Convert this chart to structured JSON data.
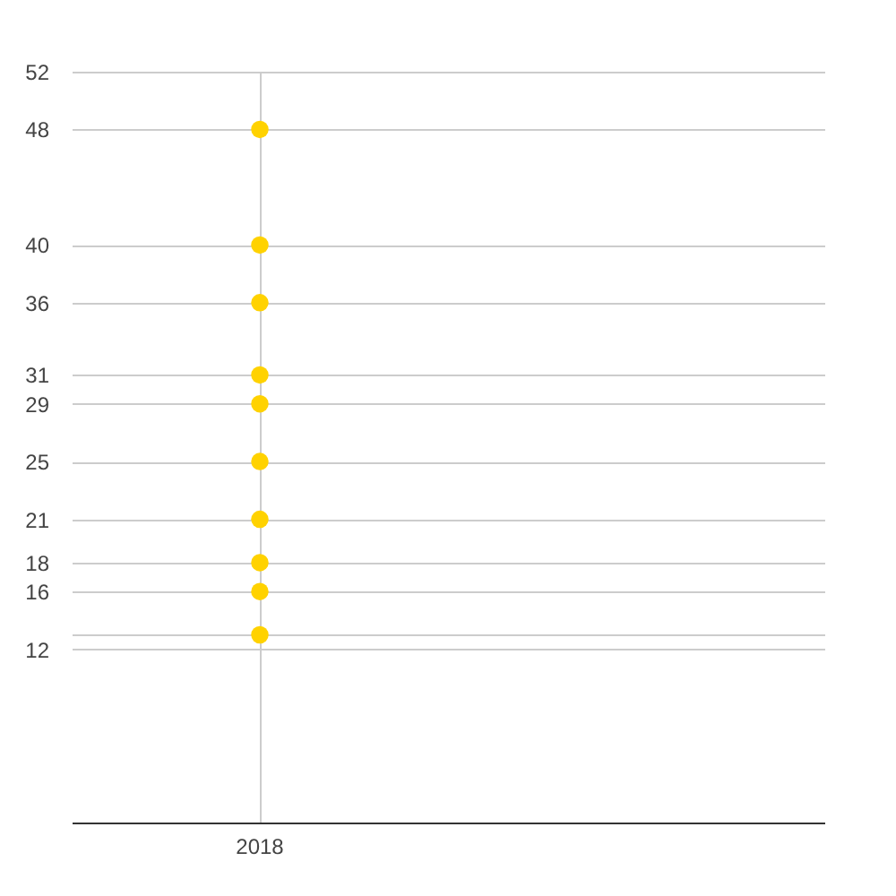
{
  "chart_data": {
    "type": "scatter",
    "categories": [
      "2018"
    ],
    "series": [
      {
        "color": "#ffd200",
        "values": [
          48
        ]
      },
      {
        "color": "#ffd200",
        "values": [
          40
        ]
      },
      {
        "color": "#ffd200",
        "values": [
          36
        ]
      },
      {
        "color": "#ffd200",
        "values": [
          31
        ]
      },
      {
        "color": "#ffd200",
        "values": [
          29
        ]
      },
      {
        "color": "#ffd200",
        "values": [
          25
        ]
      },
      {
        "color": "#ffd200",
        "values": [
          21
        ]
      },
      {
        "color": "#ffd200",
        "values": [
          18
        ]
      },
      {
        "color": "#ffd200",
        "values": [
          16
        ]
      },
      {
        "color": "#ffd200",
        "values": [
          13
        ]
      }
    ],
    "ylim": [
      0,
      52
    ],
    "yticks": [
      12,
      {
        "value": 13,
        "label": null
      },
      16,
      18,
      21,
      25,
      29,
      31,
      36,
      40,
      48,
      52
    ],
    "grid": true,
    "marker": "circle"
  }
}
